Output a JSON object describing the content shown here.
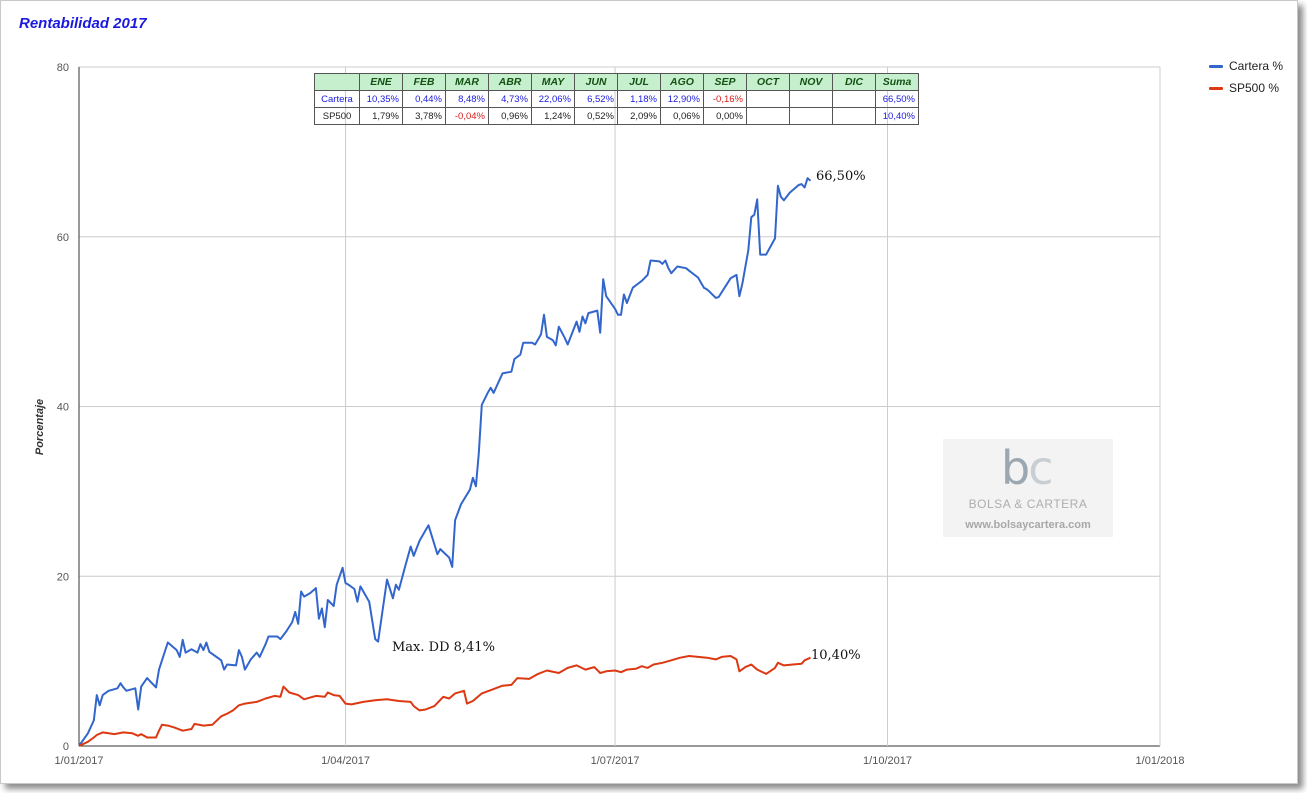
{
  "chart_data": {
    "type": "line",
    "title": "Rentabilidad 2017",
    "ylabel": "Porcentaje",
    "xlabel": "",
    "ylim": [
      0,
      80
    ],
    "yticks": [
      0,
      20,
      40,
      60,
      80
    ],
    "xticks": [
      "1/01/2017",
      "1/04/2017",
      "1/07/2017",
      "1/10/2017",
      "1/01/2018"
    ],
    "xlim_days": [
      0,
      365
    ],
    "grid": true,
    "legend_position": "top-right",
    "series": [
      {
        "name": "Cartera %",
        "color": "#3366cc",
        "points": [
          [
            0,
            0
          ],
          [
            3,
            1.5
          ],
          [
            5,
            3
          ],
          [
            6,
            6
          ],
          [
            7,
            4.8
          ],
          [
            8,
            6
          ],
          [
            10,
            6.5
          ],
          [
            13,
            6.8
          ],
          [
            14,
            7.4
          ],
          [
            15,
            6.9
          ],
          [
            16,
            6.5
          ],
          [
            19,
            6.8
          ],
          [
            20,
            4.3
          ],
          [
            21,
            7
          ],
          [
            23,
            8
          ],
          [
            26,
            6.9
          ],
          [
            27,
            9
          ],
          [
            30,
            12.2
          ],
          [
            33,
            11.3
          ],
          [
            34,
            10.5
          ],
          [
            35,
            12.5
          ],
          [
            36,
            11
          ],
          [
            38,
            11.4
          ],
          [
            40,
            11
          ],
          [
            41,
            12
          ],
          [
            42,
            11.3
          ],
          [
            43,
            12.2
          ],
          [
            44,
            11.1
          ],
          [
            46,
            10.6
          ],
          [
            48,
            10.1
          ],
          [
            49,
            9
          ],
          [
            50,
            9.6
          ],
          [
            53,
            9.5
          ],
          [
            54,
            11.3
          ],
          [
            55,
            10.5
          ],
          [
            56,
            9
          ],
          [
            58,
            10.2
          ],
          [
            60,
            11
          ],
          [
            61,
            10.5
          ],
          [
            63,
            12
          ],
          [
            64,
            12.9
          ],
          [
            67,
            12.9
          ],
          [
            68,
            12.6
          ],
          [
            70,
            13.5
          ],
          [
            72,
            14.6
          ],
          [
            73,
            15.8
          ],
          [
            74,
            14.4
          ],
          [
            75,
            18.2
          ],
          [
            76,
            17.6
          ],
          [
            78,
            18
          ],
          [
            80,
            18.6
          ],
          [
            81,
            15
          ],
          [
            82,
            16.2
          ],
          [
            83,
            14
          ],
          [
            84,
            17.2
          ],
          [
            86,
            16.5
          ],
          [
            87,
            19
          ],
          [
            89,
            21
          ],
          [
            90,
            19.2
          ],
          [
            91,
            19
          ],
          [
            93,
            18.5
          ],
          [
            94,
            17
          ],
          [
            95,
            18.8
          ],
          [
            98,
            17
          ],
          [
            100,
            12.6
          ],
          [
            101,
            12.3
          ],
          [
            104,
            19.6
          ],
          [
            106,
            17.4
          ],
          [
            107,
            19
          ],
          [
            108,
            18.4
          ],
          [
            110,
            21
          ],
          [
            112,
            23.5
          ],
          [
            113,
            22.4
          ],
          [
            115,
            24.2
          ],
          [
            117,
            25.4
          ],
          [
            118,
            26
          ],
          [
            119,
            24.9
          ],
          [
            121,
            22.6
          ],
          [
            122,
            23.2
          ],
          [
            125,
            22.2
          ],
          [
            126,
            21.1
          ],
          [
            127,
            26.6
          ],
          [
            129,
            28.5
          ],
          [
            132,
            30.2
          ],
          [
            133,
            31.6
          ],
          [
            134,
            30.6
          ],
          [
            135,
            34.5
          ],
          [
            136,
            40.2
          ],
          [
            138,
            41.6
          ],
          [
            139,
            42.2
          ],
          [
            140,
            41.6
          ],
          [
            143,
            43.9
          ],
          [
            146,
            44.1
          ],
          [
            147,
            45.6
          ],
          [
            149,
            46.1
          ],
          [
            150,
            47.5
          ],
          [
            153,
            47.5
          ],
          [
            154,
            47.3
          ],
          [
            156,
            48.5
          ],
          [
            157,
            50.8
          ],
          [
            158,
            48.2
          ],
          [
            160,
            47.8
          ],
          [
            161,
            47.2
          ],
          [
            162,
            49.4
          ],
          [
            164,
            48.1
          ],
          [
            165,
            47.3
          ],
          [
            168,
            50
          ],
          [
            169,
            48.8
          ],
          [
            170,
            50.6
          ],
          [
            171,
            49.8
          ],
          [
            172,
            51
          ],
          [
            175,
            51.3
          ],
          [
            176,
            48.7
          ],
          [
            177,
            55
          ],
          [
            178,
            53
          ],
          [
            181,
            51.5
          ],
          [
            182,
            50.8
          ],
          [
            183,
            50.8
          ],
          [
            184,
            53.2
          ],
          [
            185,
            52.2
          ],
          [
            187,
            54
          ],
          [
            190,
            54.8
          ],
          [
            192,
            55.5
          ],
          [
            193,
            57.2
          ],
          [
            196,
            57.1
          ],
          [
            197,
            56.8
          ],
          [
            198,
            57.2
          ],
          [
            199,
            56.3
          ],
          [
            200,
            55.7
          ],
          [
            202,
            56.5
          ],
          [
            205,
            56.3
          ],
          [
            206,
            56
          ],
          [
            209,
            55.2
          ],
          [
            211,
            54
          ],
          [
            212,
            53.8
          ],
          [
            213,
            53.5
          ],
          [
            215,
            52.8
          ],
          [
            216,
            52.9
          ],
          [
            218,
            54
          ],
          [
            220,
            55.1
          ],
          [
            222,
            55.5
          ],
          [
            223,
            53
          ],
          [
            224,
            54.5
          ],
          [
            226,
            58.4
          ],
          [
            227,
            62.3
          ],
          [
            228,
            62.6
          ],
          [
            229,
            64.4
          ],
          [
            230,
            57.9
          ],
          [
            232,
            57.9
          ],
          [
            235,
            59.8
          ],
          [
            236,
            66
          ],
          [
            237,
            64.7
          ],
          [
            238,
            64.3
          ],
          [
            240,
            65.2
          ],
          [
            243,
            66.1
          ],
          [
            244,
            66.2
          ],
          [
            245,
            65.8
          ],
          [
            246,
            66.9
          ],
          [
            247,
            66.6
          ]
        ],
        "end_label": "66,50%"
      },
      {
        "name": "SP500 %",
        "color": "#dc3912",
        "points": [
          [
            0,
            0
          ],
          [
            3,
            0.5
          ],
          [
            5,
            1
          ],
          [
            6,
            1.3
          ],
          [
            8,
            1.6
          ],
          [
            10,
            1.5
          ],
          [
            12,
            1.4
          ],
          [
            15,
            1.6
          ],
          [
            18,
            1.5
          ],
          [
            20,
            1.2
          ],
          [
            21,
            1.4
          ],
          [
            23,
            1
          ],
          [
            26,
            1
          ],
          [
            27,
            1.8
          ],
          [
            28,
            2.5
          ],
          [
            30,
            2.4
          ],
          [
            32,
            2.2
          ],
          [
            35,
            1.8
          ],
          [
            38,
            2
          ],
          [
            39,
            2.6
          ],
          [
            42,
            2.4
          ],
          [
            45,
            2.5
          ],
          [
            48,
            3.5
          ],
          [
            50,
            3.8
          ],
          [
            52,
            4.2
          ],
          [
            54,
            4.8
          ],
          [
            56,
            5
          ],
          [
            60,
            5.2
          ],
          [
            63,
            5.6
          ],
          [
            66,
            5.9
          ],
          [
            68,
            5.8
          ],
          [
            69,
            7
          ],
          [
            71,
            6.3
          ],
          [
            74,
            6
          ],
          [
            76,
            5.5
          ],
          [
            78,
            5.7
          ],
          [
            80,
            5.9
          ],
          [
            83,
            5.8
          ],
          [
            84,
            6.3
          ],
          [
            86,
            6
          ],
          [
            88,
            5.9
          ],
          [
            90,
            5
          ],
          [
            92,
            4.9
          ],
          [
            96,
            5.2
          ],
          [
            100,
            5.4
          ],
          [
            104,
            5.5
          ],
          [
            108,
            5.3
          ],
          [
            112,
            5.2
          ],
          [
            113,
            4.7
          ],
          [
            115,
            4.2
          ],
          [
            117,
            4.3
          ],
          [
            120,
            4.7
          ],
          [
            123,
            5.8
          ],
          [
            125,
            5.6
          ],
          [
            127,
            6.2
          ],
          [
            130,
            6.5
          ],
          [
            131,
            5
          ],
          [
            133,
            5.3
          ],
          [
            136,
            6.2
          ],
          [
            140,
            6.7
          ],
          [
            143,
            7.1
          ],
          [
            146,
            7.2
          ],
          [
            148,
            8
          ],
          [
            152,
            7.9
          ],
          [
            155,
            8.5
          ],
          [
            158,
            8.9
          ],
          [
            162,
            8.6
          ],
          [
            165,
            9.2
          ],
          [
            168,
            9.5
          ],
          [
            171,
            9
          ],
          [
            174,
            9.3
          ],
          [
            176,
            8.6
          ],
          [
            178,
            8.8
          ],
          [
            181,
            8.9
          ],
          [
            183,
            8.7
          ],
          [
            185,
            9
          ],
          [
            188,
            9.1
          ],
          [
            190,
            9.4
          ],
          [
            192,
            9.2
          ],
          [
            194,
            9.6
          ],
          [
            197,
            9.8
          ],
          [
            200,
            10.1
          ],
          [
            203,
            10.4
          ],
          [
            206,
            10.6
          ],
          [
            209,
            10.5
          ],
          [
            212,
            10.4
          ],
          [
            215,
            10.2
          ],
          [
            217,
            10.5
          ],
          [
            220,
            10.6
          ],
          [
            222,
            10.2
          ],
          [
            223,
            8.8
          ],
          [
            225,
            9.3
          ],
          [
            227,
            9.6
          ],
          [
            229,
            9
          ],
          [
            232,
            8.5
          ],
          [
            235,
            9.2
          ],
          [
            236,
            9.8
          ],
          [
            238,
            9.5
          ],
          [
            241,
            9.6
          ],
          [
            244,
            9.7
          ],
          [
            245,
            10.1
          ],
          [
            247,
            10.4
          ]
        ],
        "end_label": "10,40%"
      }
    ],
    "annotations": [
      {
        "text": "Max. DD 8,41%",
        "x": 101,
        "y": 12.3
      }
    ]
  },
  "table": {
    "headers": [
      "",
      "ENE",
      "FEB",
      "MAR",
      "ABR",
      "MAY",
      "JUN",
      "JUL",
      "AGO",
      "SEP",
      "OCT",
      "NOV",
      "DIC",
      "Suma"
    ],
    "rows": [
      {
        "name": "Cartera",
        "cells": [
          {
            "v": "10,35%",
            "c": "pos"
          },
          {
            "v": "0,44%",
            "c": "pos"
          },
          {
            "v": "8,48%",
            "c": "pos"
          },
          {
            "v": "4,73%",
            "c": "pos"
          },
          {
            "v": "22,06%",
            "c": "pos"
          },
          {
            "v": "6,52%",
            "c": "pos"
          },
          {
            "v": "1,18%",
            "c": "pos"
          },
          {
            "v": "12,90%",
            "c": "pos"
          },
          {
            "v": "-0,16%",
            "c": "neg"
          },
          {
            "v": "",
            "c": "blk"
          },
          {
            "v": "",
            "c": "blk"
          },
          {
            "v": "",
            "c": "blk"
          },
          {
            "v": "66,50%",
            "c": "pos"
          }
        ]
      },
      {
        "name": "SP500",
        "cells": [
          {
            "v": "1,79%",
            "c": "blk"
          },
          {
            "v": "3,78%",
            "c": "blk"
          },
          {
            "v": "-0,04%",
            "c": "neg"
          },
          {
            "v": "0,96%",
            "c": "blk"
          },
          {
            "v": "1,24%",
            "c": "blk"
          },
          {
            "v": "0,52%",
            "c": "blk"
          },
          {
            "v": "2,09%",
            "c": "blk"
          },
          {
            "v": "0,06%",
            "c": "blk"
          },
          {
            "v": "0,00%",
            "c": "blk"
          },
          {
            "v": "",
            "c": "blk"
          },
          {
            "v": "",
            "c": "blk"
          },
          {
            "v": "",
            "c": "blk"
          },
          {
            "v": "10,40%",
            "c": "pos"
          }
        ]
      }
    ]
  },
  "watermark": {
    "logo_b": "b",
    "logo_c": "c",
    "name": "BOLSA & CARTERA",
    "url": "www.bolsaycartera.com"
  }
}
